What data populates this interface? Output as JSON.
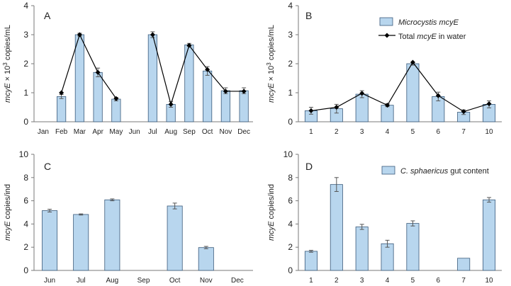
{
  "figure": {
    "bar_fill": "#b8d6ee",
    "bar_stroke": "#3a5a7a",
    "line_color": "#000000"
  },
  "chart_data": [
    {
      "id": "A",
      "type": "bar",
      "panel_label": "A",
      "ylabel": {
        "pre": "",
        "italic": "mcyE",
        "mid": " × 10",
        "sup": "3",
        "post": " copies/mL"
      },
      "ylim": [
        0,
        4
      ],
      "yticks": [
        0,
        1,
        2,
        3,
        4
      ],
      "categories": [
        "Jan",
        "Feb",
        "Mar",
        "Apr",
        "May",
        "Jun",
        "Jul",
        "Aug",
        "Sep",
        "Oct",
        "Nov",
        "Dec"
      ],
      "series": [
        {
          "name": "Microcystis mcyE",
          "kind": "bar",
          "values": [
            null,
            0.87,
            3.0,
            1.7,
            0.78,
            null,
            3.0,
            0.6,
            2.65,
            1.75,
            1.07,
            1.07
          ],
          "errors": [
            null,
            0.07,
            0.05,
            0.15,
            0.06,
            null,
            0.1,
            0.1,
            0.05,
            0.15,
            0.1,
            0.1
          ]
        },
        {
          "name": "Total mcyE in water",
          "kind": "line",
          "segments": [
            [
              [
                1,
                1.0
              ],
              [
                2,
                3.0
              ],
              [
                3,
                1.7
              ],
              [
                4,
                0.8
              ]
            ],
            [
              [
                6,
                3.0
              ],
              [
                7,
                0.6
              ],
              [
                8,
                2.63
              ],
              [
                9,
                1.8
              ],
              [
                10,
                1.05
              ],
              [
                11,
                1.05
              ]
            ]
          ]
        }
      ]
    },
    {
      "id": "B",
      "type": "bar",
      "panel_label": "B",
      "ylabel": {
        "pre": "",
        "italic": "mcyE",
        "mid": " × 10",
        "sup": "3",
        "post": " copies/mL"
      },
      "ylim": [
        0,
        4
      ],
      "yticks": [
        0,
        1,
        2,
        3,
        4
      ],
      "categories": [
        "1",
        "2",
        "3",
        "4",
        "5",
        "6",
        "7",
        "10"
      ],
      "legend": {
        "position": "top-right",
        "items": [
          {
            "kind": "bar",
            "italic": "Microcystis mcyE",
            "plain": ""
          },
          {
            "kind": "line",
            "plain": "Total ",
            "italic": "mcyE",
            "plain2": " in water"
          }
        ]
      },
      "series": [
        {
          "name": "Microcystis mcyE",
          "kind": "bar",
          "values": [
            0.38,
            0.45,
            0.95,
            0.57,
            2.0,
            0.87,
            0.33,
            0.6
          ],
          "errors": [
            0.12,
            0.15,
            0.12,
            0.05,
            0.05,
            0.15,
            0.08,
            0.12
          ]
        },
        {
          "name": "Total mcyE in water",
          "kind": "line",
          "segments": [
            [
              [
                0,
                0.38
              ],
              [
                1,
                0.5
              ],
              [
                2,
                0.98
              ],
              [
                3,
                0.57
              ],
              [
                4,
                2.05
              ],
              [
                5,
                0.9
              ],
              [
                6,
                0.35
              ],
              [
                7,
                0.62
              ]
            ]
          ]
        }
      ]
    },
    {
      "id": "C",
      "type": "bar",
      "panel_label": "C",
      "ylabel": {
        "pre": "",
        "italic": "mcyE",
        "mid": "",
        "sup": "",
        "post": " copies/ind"
      },
      "ylim": [
        0,
        10
      ],
      "yticks": [
        0,
        2,
        4,
        6,
        8,
        10
      ],
      "categories": [
        "Jun",
        "Jul",
        "Aug",
        "Sep",
        "Oct",
        "Nov",
        "Dec"
      ],
      "series": [
        {
          "name": "C. sphaericus gut content",
          "kind": "bar",
          "values": [
            5.15,
            4.82,
            6.08,
            null,
            5.55,
            1.97,
            null
          ],
          "errors": [
            0.12,
            0.05,
            0.08,
            null,
            0.25,
            0.1,
            null
          ]
        }
      ]
    },
    {
      "id": "D",
      "type": "bar",
      "panel_label": "D",
      "ylabel": {
        "pre": "",
        "italic": "mcyE",
        "mid": "",
        "sup": "",
        "post": " copies/ind"
      },
      "ylim": [
        0,
        10
      ],
      "yticks": [
        0,
        2,
        4,
        6,
        8,
        10
      ],
      "categories": [
        "1",
        "2",
        "3",
        "4",
        "5",
        "6",
        "7",
        "10"
      ],
      "legend": {
        "position": "top-right",
        "items": [
          {
            "kind": "bar",
            "italic": "C. sphaericus",
            "plain": " gut content"
          }
        ]
      },
      "series": [
        {
          "name": "C. sphaericus gut content",
          "kind": "bar",
          "values": [
            1.65,
            7.4,
            3.75,
            2.3,
            4.05,
            null,
            1.05,
            6.08
          ],
          "errors": [
            0.08,
            0.6,
            0.22,
            0.3,
            0.22,
            null,
            0,
            0.2
          ]
        }
      ]
    }
  ]
}
